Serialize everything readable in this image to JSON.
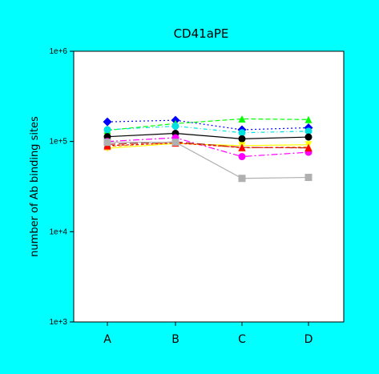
{
  "chart_data": {
    "type": "line",
    "title": "CD41aPE",
    "xlabel": "",
    "ylabel": "number of Ab binding sites",
    "yscale": "log",
    "ylim": [
      1000,
      1000000
    ],
    "yticks": [
      "1e+3",
      "1e+4",
      "1e+5",
      "1e+6"
    ],
    "categories": [
      "A",
      "B",
      "C",
      "D"
    ],
    "grid": false,
    "legend": "none",
    "background": "#00ffff",
    "plot_background": "#ffffff",
    "series": [
      {
        "color": "#0000ff",
        "marker": "diamond",
        "dash": "2,3",
        "values": [
          165000,
          172000,
          135000,
          142000
        ]
      },
      {
        "color": "#00ff00",
        "marker": "triangle",
        "dash": "6,3",
        "values": [
          133000,
          158000,
          178000,
          175000
        ]
      },
      {
        "color": "#00e0e0",
        "marker": "circle",
        "dash": "5,3,1,3",
        "values": [
          135000,
          148000,
          125000,
          130000
        ]
      },
      {
        "color": "#000000",
        "marker": "circle",
        "dash": "",
        "values": [
          113000,
          123000,
          107000,
          112000
        ]
      },
      {
        "color": "#ff00ff",
        "marker": "circle",
        "dash": "8,3,2,3",
        "values": [
          100000,
          110000,
          68000,
          76000
        ]
      },
      {
        "color": "#ffff00",
        "marker": "triangle-down",
        "dash": "",
        "values": [
          84000,
          95000,
          90000,
          92000
        ]
      },
      {
        "color": "#ff8c00",
        "marker": "triangle",
        "dash": "4,3",
        "values": [
          88000,
          97000,
          85000,
          87000
        ]
      },
      {
        "color": "#a52a2a",
        "marker": "triangle",
        "dash": "10,4",
        "values": [
          93000,
          99000,
          86000,
          85000
        ]
      },
      {
        "color": "#ff0000",
        "marker": "triangle",
        "dash": "3,3",
        "values": [
          90000,
          96000,
          86000,
          85000
        ]
      },
      {
        "color": "#b0b0b0",
        "marker": "square",
        "dash": "",
        "values": [
          98000,
          98000,
          39000,
          40000
        ]
      }
    ]
  }
}
